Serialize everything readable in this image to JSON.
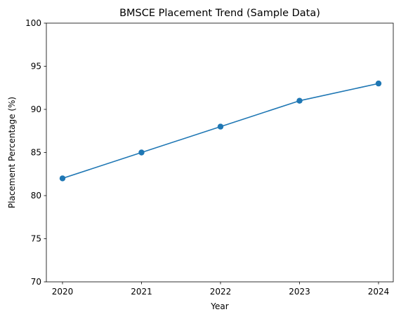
{
  "chart_data": {
    "type": "line",
    "title": "BMSCE Placement Trend (Sample Data)",
    "xlabel": "Year",
    "ylabel": "Placement Percentage (%)",
    "x": [
      2020,
      2021,
      2022,
      2023,
      2024
    ],
    "series": [
      {
        "values": [
          82,
          85,
          88,
          91,
          93
        ],
        "color": "#1f77b4",
        "marker": "circle"
      }
    ],
    "x_ticks": [
      "2020",
      "2021",
      "2022",
      "2023",
      "2024"
    ],
    "y_ticks": [
      "70",
      "75",
      "80",
      "85",
      "90",
      "95",
      "100"
    ],
    "ylim": [
      70,
      100
    ],
    "grid": false,
    "legend": "none"
  }
}
